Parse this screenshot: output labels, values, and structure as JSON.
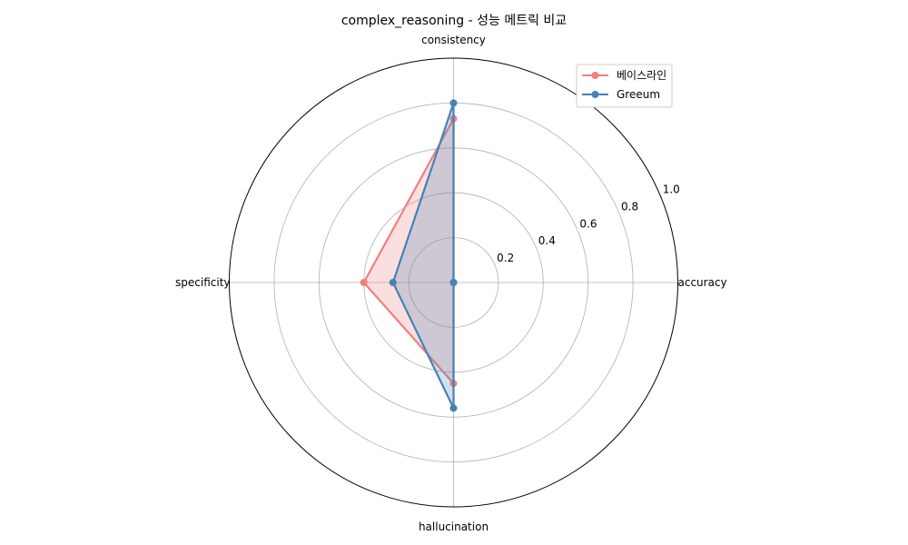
{
  "chart_data": {
    "type": "radar",
    "title": "complex_reasoning - 성능 메트릭 비교",
    "axes": [
      "accuracy",
      "consistency",
      "specificity",
      "hallucination"
    ],
    "rlim": [
      0,
      1.0
    ],
    "r_ticks": [
      "0.2",
      "0.4",
      "0.6",
      "0.8",
      "1.0"
    ],
    "r_tick_values": [
      0.2,
      0.4,
      0.6,
      0.8,
      1.0
    ],
    "grid": true,
    "legend": "top-right",
    "series": [
      {
        "name": "베이스라인",
        "color": "#f08080",
        "values": [
          0.0,
          0.73,
          0.4,
          0.45
        ]
      },
      {
        "name": "Greeum",
        "color": "#4682b4",
        "values": [
          0.0,
          0.8,
          0.27,
          0.56
        ]
      }
    ]
  }
}
